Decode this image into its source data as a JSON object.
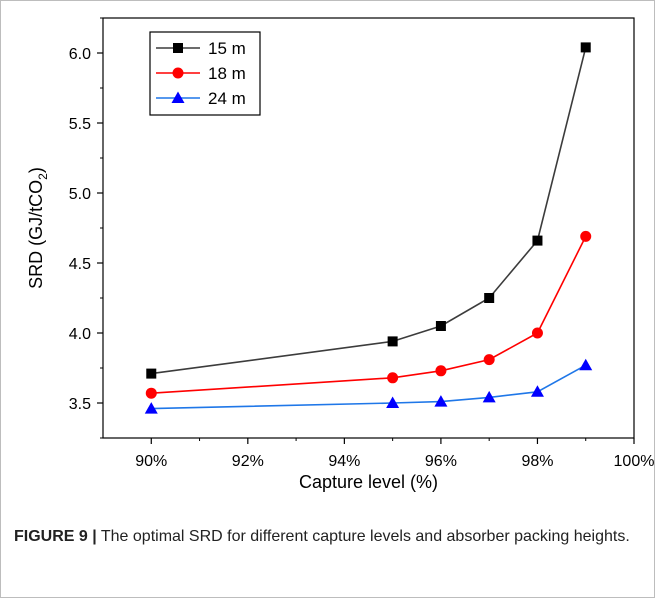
{
  "chart_data": {
    "type": "line",
    "xlabel": "Capture level (%)",
    "ylabel": "SRD (GJ/tCO2)",
    "x": [
      90,
      95,
      96,
      97,
      98,
      99
    ],
    "xlim": [
      89,
      100
    ],
    "ylim": [
      3.25,
      6.25
    ],
    "xticks": [
      "90%",
      "92%",
      "94%",
      "96%",
      "98%",
      "100%"
    ],
    "yticks": [
      "3.5",
      "4.0",
      "4.5",
      "5.0",
      "5.5",
      "6.0"
    ],
    "grid": false,
    "legend_position": "top-left",
    "series": [
      {
        "name": "15 m",
        "values": [
          3.71,
          3.94,
          4.05,
          4.25,
          4.66,
          6.04
        ],
        "color": "#3c3c3c",
        "marker": "square-marker",
        "marker_color": "#000000"
      },
      {
        "name": "18 m",
        "values": [
          3.57,
          3.68,
          3.73,
          3.81,
          4.0,
          4.69
        ],
        "color": "#ff0000",
        "marker": "circle-marker",
        "marker_color": "#ff0000"
      },
      {
        "name": "24 m",
        "values": [
          3.46,
          3.5,
          3.51,
          3.54,
          3.58,
          3.77
        ],
        "color": "#1f77e8",
        "marker": "triangle-marker",
        "marker_color": "#0000ff"
      }
    ]
  },
  "caption": {
    "label": "FIGURE 9 |",
    "text": "The optimal SRD for different capture levels and absorber packing heights."
  }
}
